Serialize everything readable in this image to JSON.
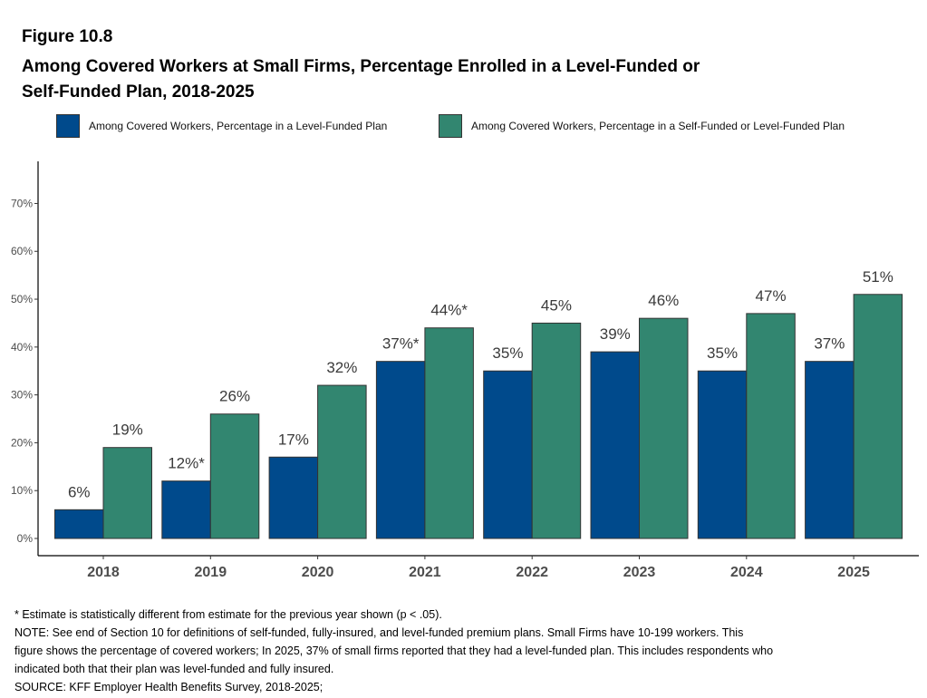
{
  "figure_label": "Figure 10.8",
  "title_line1": "Among Covered Workers at Small Firms, Percentage Enrolled in a Level-Funded or",
  "title_line2": "Self-Funded Plan, 2018-2025",
  "colors": {
    "level_funded": "#004a8c",
    "self_or_level_funded": "#328670",
    "axis": "#000000"
  },
  "chart_data": {
    "type": "bar",
    "title": "Among Covered Workers at Small Firms, Percentage Enrolled in a Level-Funded or Self-Funded Plan, 2018-2025",
    "xlabel": "",
    "ylabel": "",
    "ylim": [
      0,
      80
    ],
    "yticks": [
      0,
      10,
      20,
      30,
      40,
      50,
      60,
      70
    ],
    "ytick_labels": [
      "0%",
      "10%",
      "20%",
      "30%",
      "40%",
      "50%",
      "60%",
      "70%"
    ],
    "grid": false,
    "legend_position": "top",
    "categories": [
      "2018",
      "2019",
      "2020",
      "2021",
      "2022",
      "2023",
      "2024",
      "2025"
    ],
    "series": [
      {
        "name": "Among Covered Workers, Percentage in a Level-Funded Plan",
        "values": [
          6,
          12,
          17,
          37,
          35,
          39,
          35,
          37
        ],
        "labels": [
          "6%",
          "12%*",
          "17%",
          "37%*",
          "35%",
          "39%",
          "35%",
          "37%"
        ]
      },
      {
        "name": "Among Covered Workers, Percentage in a Self-Funded or Level-Funded Plan",
        "values": [
          19,
          26,
          32,
          44,
          45,
          46,
          47,
          51
        ],
        "labels": [
          "19%",
          "26%",
          "32%",
          "44%*",
          "45%",
          "46%",
          "47%",
          "51%"
        ]
      }
    ]
  },
  "notes": {
    "asterisk": "* Estimate is statistically different from estimate for the previous year shown (p < .05).",
    "note_line1": "NOTE: See end of Section 10 for definitions of self-funded, fully-insured, and level-funded premium plans. Small Firms have 10-199 workers. This",
    "note_line2": "figure shows the percentage of covered workers; In 2025, 37% of small firms reported that they had a level-funded plan. This includes respondents who",
    "note_line3": "indicated both that their plan was level-funded and fully insured.",
    "source": "SOURCE: KFF Employer Health Benefits Survey, 2018-2025;"
  }
}
